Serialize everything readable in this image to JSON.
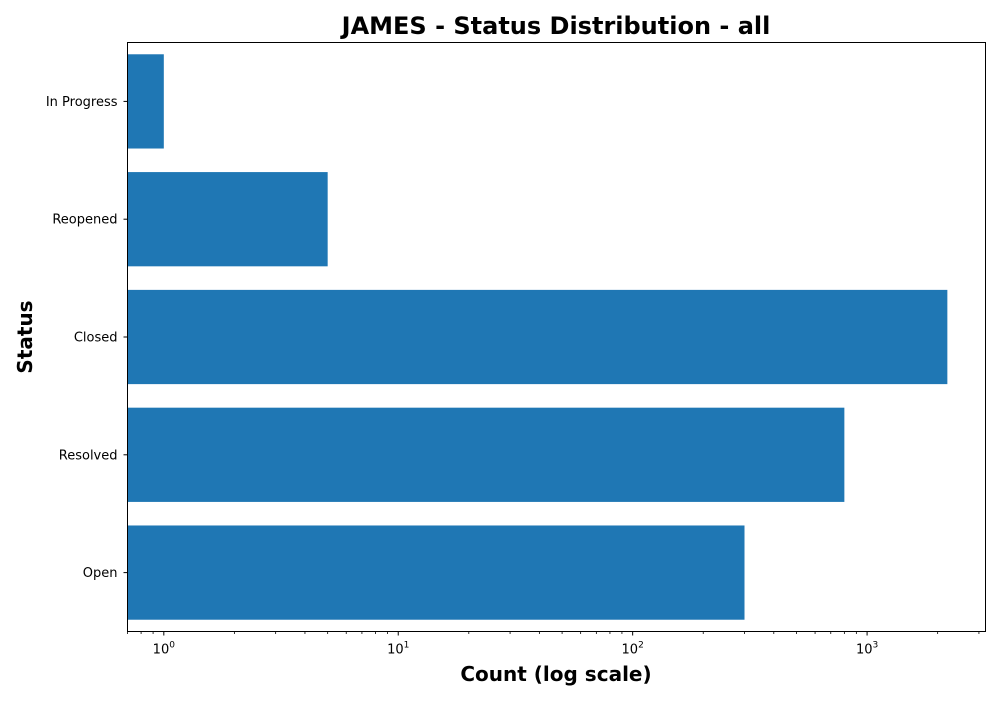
{
  "chart_data": {
    "type": "bar",
    "orientation": "horizontal",
    "title": "JAMES - Status Distribution - all",
    "xlabel": "Count (log scale)",
    "ylabel": "Status",
    "x_scale": "log",
    "xlim": [
      0.7,
      3200
    ],
    "x_ticks": [
      {
        "value": 1,
        "base": "10",
        "exp": "0"
      },
      {
        "value": 10,
        "base": "10",
        "exp": "1"
      },
      {
        "value": 100,
        "base": "10",
        "exp": "2"
      },
      {
        "value": 1000,
        "base": "10",
        "exp": "3"
      }
    ],
    "categories": [
      "In Progress",
      "Reopened",
      "Closed",
      "Resolved",
      "Open"
    ],
    "values": [
      1,
      5,
      2200,
      800,
      300
    ],
    "bar_color": "#1f77b4",
    "grid": false,
    "legend": "none"
  }
}
